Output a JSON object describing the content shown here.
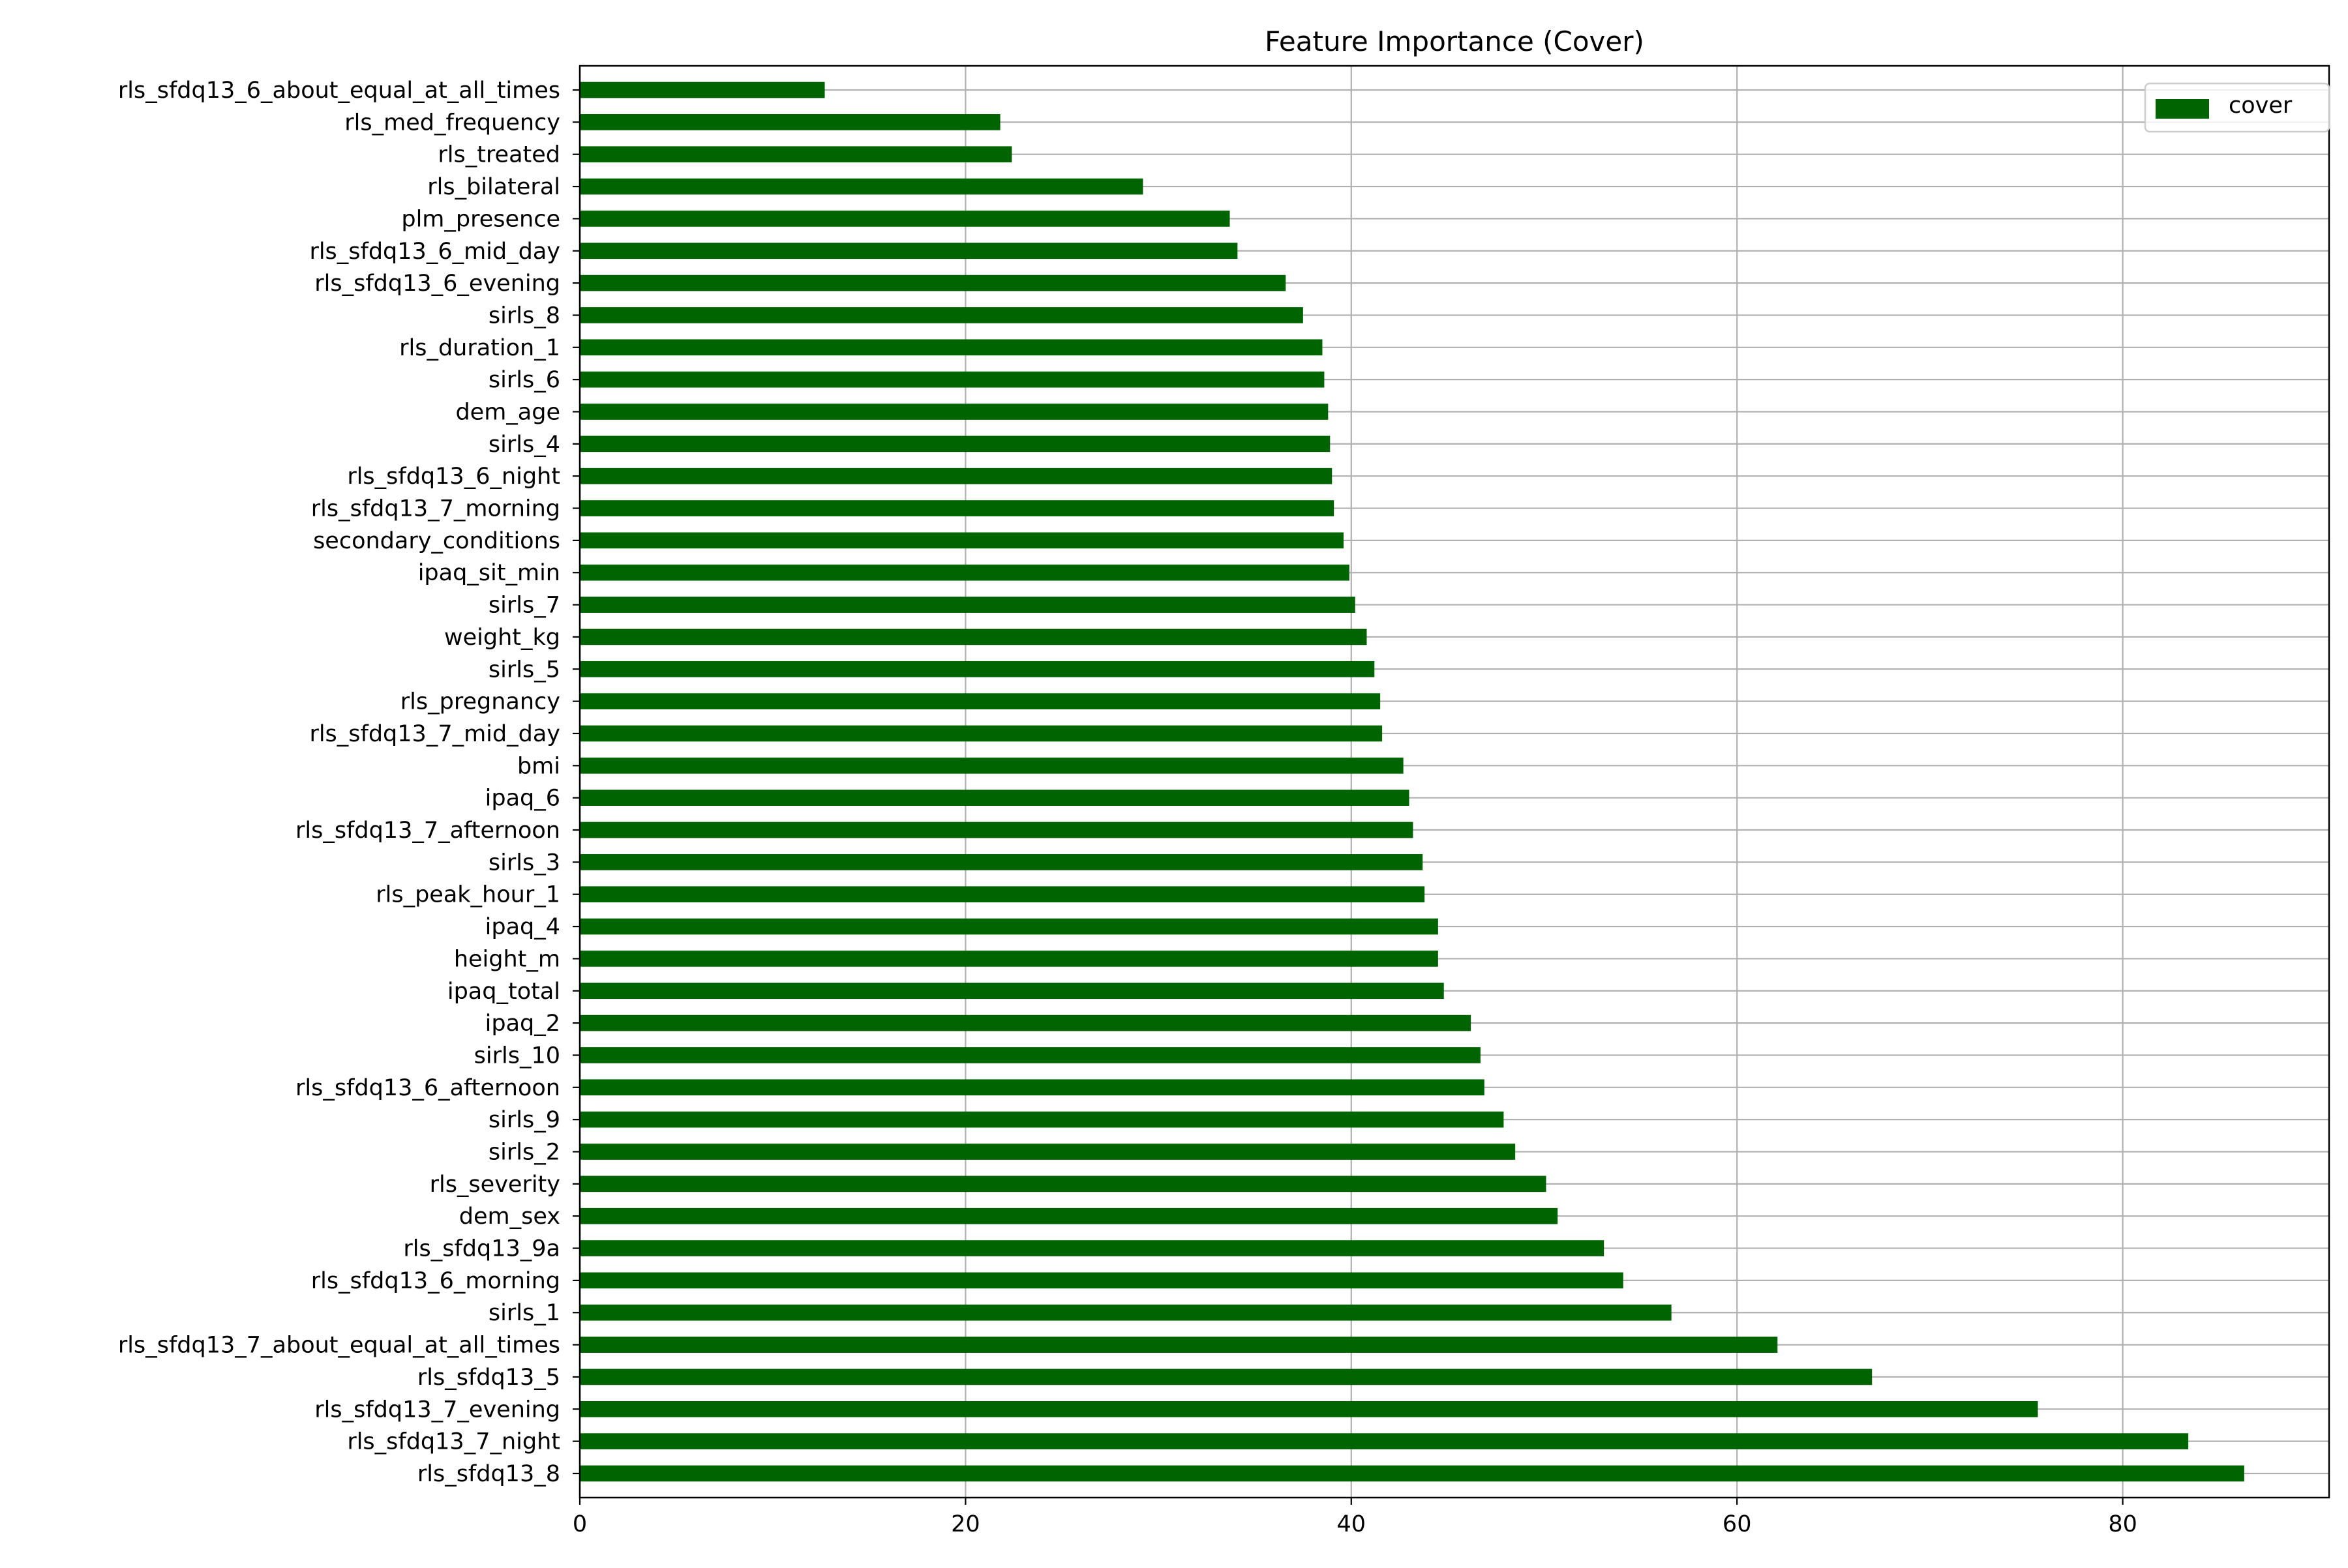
{
  "chart_data": {
    "type": "bar",
    "orientation": "horizontal",
    "title": "Feature Importance (Cover)",
    "xlabel": "",
    "ylabel": "",
    "xlim": [
      0,
      90.7
    ],
    "xticks": [
      0,
      20,
      40,
      60,
      80
    ],
    "grid": true,
    "legend": {
      "placement": "top-right",
      "entries": [
        "cover"
      ]
    },
    "colors": {
      "bar": "#006400",
      "grid": "#b0b0b0",
      "axis": "#000000",
      "legend_border": "#cccccc"
    },
    "series": [
      {
        "name": "cover",
        "values": [
          86.3,
          83.4,
          75.6,
          67.0,
          62.1,
          56.6,
          54.1,
          53.1,
          50.7,
          50.1,
          48.5,
          47.9,
          46.9,
          46.7,
          46.2,
          44.8,
          44.5,
          44.5,
          43.8,
          43.7,
          43.2,
          43.0,
          42.7,
          41.6,
          41.5,
          41.2,
          40.8,
          40.2,
          39.9,
          39.6,
          39.1,
          39.0,
          38.9,
          38.8,
          38.6,
          38.5,
          37.5,
          36.6,
          34.1,
          33.7,
          29.2,
          22.4,
          21.8,
          12.7
        ]
      }
    ],
    "categories": [
      "rls_sfdq13_8",
      "rls_sfdq13_7_night",
      "rls_sfdq13_7_evening",
      "rls_sfdq13_5",
      "rls_sfdq13_7_about_equal_at_all_times",
      "sirls_1",
      "rls_sfdq13_6_morning",
      "rls_sfdq13_9a",
      "dem_sex",
      "rls_severity",
      "sirls_2",
      "sirls_9",
      "rls_sfdq13_6_afternoon",
      "sirls_10",
      "ipaq_2",
      "ipaq_total",
      "height_m",
      "ipaq_4",
      "rls_peak_hour_1",
      "sirls_3",
      "rls_sfdq13_7_afternoon",
      "ipaq_6",
      "bmi",
      "rls_sfdq13_7_mid_day",
      "rls_pregnancy",
      "sirls_5",
      "weight_kg",
      "sirls_7",
      "ipaq_sit_min",
      "secondary_conditions",
      "rls_sfdq13_7_morning",
      "rls_sfdq13_6_night",
      "sirls_4",
      "dem_age",
      "sirls_6",
      "rls_duration_1",
      "sirls_8",
      "rls_sfdq13_6_evening",
      "rls_sfdq13_6_mid_day",
      "plm_presence",
      "rls_bilateral",
      "rls_treated",
      "rls_med_frequency",
      "rls_sfdq13_6_about_equal_at_all_times"
    ]
  }
}
